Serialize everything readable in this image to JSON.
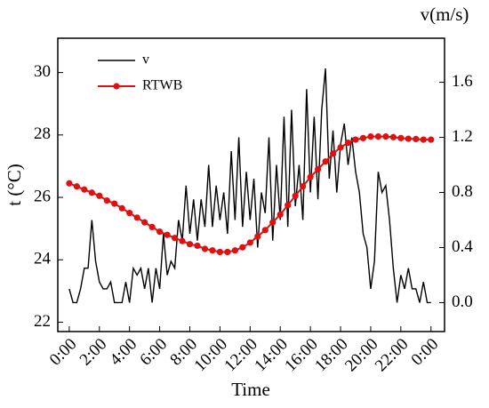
{
  "chart_data": {
    "type": "line",
    "xlabel": "Time",
    "ylabel": "t (°C)",
    "y2label": "v(m/s)",
    "xlim": [
      -0.76,
      24.9
    ],
    "xticks": [
      {
        "value": 0,
        "label": "0:00"
      },
      {
        "value": 2,
        "label": "2:00"
      },
      {
        "value": 4,
        "label": "4:00"
      },
      {
        "value": 6,
        "label": "6:00"
      },
      {
        "value": 8,
        "label": "8:00"
      },
      {
        "value": 10,
        "label": "10:00"
      },
      {
        "value": 12,
        "label": "12:00"
      },
      {
        "value": 14,
        "label": "14:00"
      },
      {
        "value": 16,
        "label": "16:00"
      },
      {
        "value": 18,
        "label": "18:00"
      },
      {
        "value": 20,
        "label": "20:00"
      },
      {
        "value": 22,
        "label": "22:00"
      },
      {
        "value": 24,
        "label": "0:00"
      }
    ],
    "ylim": [
      21.7,
      31.1
    ],
    "yticks": [
      22,
      24,
      26,
      28,
      30
    ],
    "y2lim": [
      -0.21,
      1.92
    ],
    "y2ticks": [
      {
        "value": 0,
        "label": "0.0"
      },
      0.4,
      0.8,
      1.2,
      1.6
    ],
    "legend": "upper left",
    "series": [
      {
        "name": "v",
        "color": "#000000",
        "axis": "y2",
        "x": [
          0,
          0.25,
          0.5,
          0.75,
          1,
          1.25,
          1.5,
          1.75,
          2,
          2.25,
          2.5,
          2.75,
          3,
          3.25,
          3.5,
          3.75,
          4,
          4.25,
          4.5,
          4.75,
          5,
          5.25,
          5.5,
          5.75,
          6,
          6.25,
          6.5,
          6.75,
          7,
          7.25,
          7.5,
          7.75,
          8,
          8.25,
          8.5,
          8.75,
          9,
          9.25,
          9.5,
          9.75,
          10,
          10.25,
          10.5,
          10.75,
          11,
          11.25,
          11.5,
          11.75,
          12,
          12.25,
          12.5,
          12.75,
          13,
          13.25,
          13.5,
          13.75,
          14,
          14.25,
          14.5,
          14.75,
          15,
          15.25,
          15.5,
          15.75,
          16,
          16.25,
          16.5,
          16.75,
          17,
          17.25,
          17.5,
          17.75,
          18,
          18.25,
          18.5,
          18.75,
          19,
          19.25,
          19.5,
          19.75,
          20,
          20.25,
          20.5,
          20.75,
          21,
          21.25,
          21.5,
          21.75,
          22,
          22.25,
          22.5,
          22.75,
          23,
          23.25,
          23.5,
          23.75,
          24
        ],
        "values": [
          0.1,
          0,
          0,
          0.1,
          0.25,
          0.25,
          0.6,
          0.3,
          0.15,
          0.1,
          0.1,
          0.15,
          0,
          0,
          0,
          0.15,
          0,
          0.25,
          0.2,
          0.25,
          0.1,
          0.25,
          0,
          0.25,
          0.1,
          0.5,
          0.2,
          0.3,
          0.25,
          0.6,
          0.45,
          0.85,
          0.5,
          0.75,
          0.45,
          0.75,
          0.55,
          1.0,
          0.55,
          0.85,
          0.6,
          0.8,
          0.5,
          1.1,
          0.6,
          1.2,
          0.55,
          0.95,
          0.6,
          0.9,
          0.4,
          0.8,
          0.65,
          1.2,
          0.45,
          1.0,
          0.6,
          1.35,
          0.55,
          1.4,
          0.7,
          1.0,
          0.6,
          1.55,
          0.8,
          1.35,
          0.75,
          1.4,
          1.7,
          0.9,
          1.25,
          0.8,
          1.15,
          1.3,
          1.0,
          1.2,
          0.95,
          0.8,
          0.5,
          0.4,
          0.1,
          0.3,
          0.95,
          0.8,
          0.85,
          0.6,
          0.25,
          0,
          0.2,
          0.1,
          0.25,
          0.1,
          0.1,
          0,
          0.15,
          0,
          0
        ]
      },
      {
        "name": "RTWB",
        "color": "#e01010",
        "axis": "y",
        "marker": "circle",
        "x": [
          0,
          0.5,
          1,
          1.5,
          2,
          2.5,
          3,
          3.5,
          4,
          4.5,
          5,
          5.5,
          6,
          6.5,
          7,
          7.5,
          8,
          8.5,
          9,
          9.5,
          10,
          10.5,
          11,
          11.5,
          12,
          12.5,
          13,
          13.5,
          14,
          14.5,
          15,
          15.5,
          16,
          16.5,
          17,
          17.5,
          18,
          18.5,
          19,
          19.5,
          20,
          20.5,
          21,
          21.5,
          22,
          22.5,
          23,
          23.5,
          24
        ],
        "values": [
          26.45,
          26.35,
          26.25,
          26.15,
          26.05,
          25.9,
          25.8,
          25.65,
          25.5,
          25.35,
          25.2,
          25.05,
          24.9,
          24.8,
          24.7,
          24.6,
          24.5,
          24.45,
          24.35,
          24.3,
          24.25,
          24.25,
          24.3,
          24.4,
          24.55,
          24.75,
          24.95,
          25.2,
          25.45,
          25.75,
          26.05,
          26.35,
          26.65,
          26.9,
          27.15,
          27.4,
          27.6,
          27.75,
          27.85,
          27.9,
          27.95,
          27.95,
          27.95,
          27.93,
          27.9,
          27.88,
          27.87,
          27.85,
          27.85
        ]
      }
    ]
  }
}
